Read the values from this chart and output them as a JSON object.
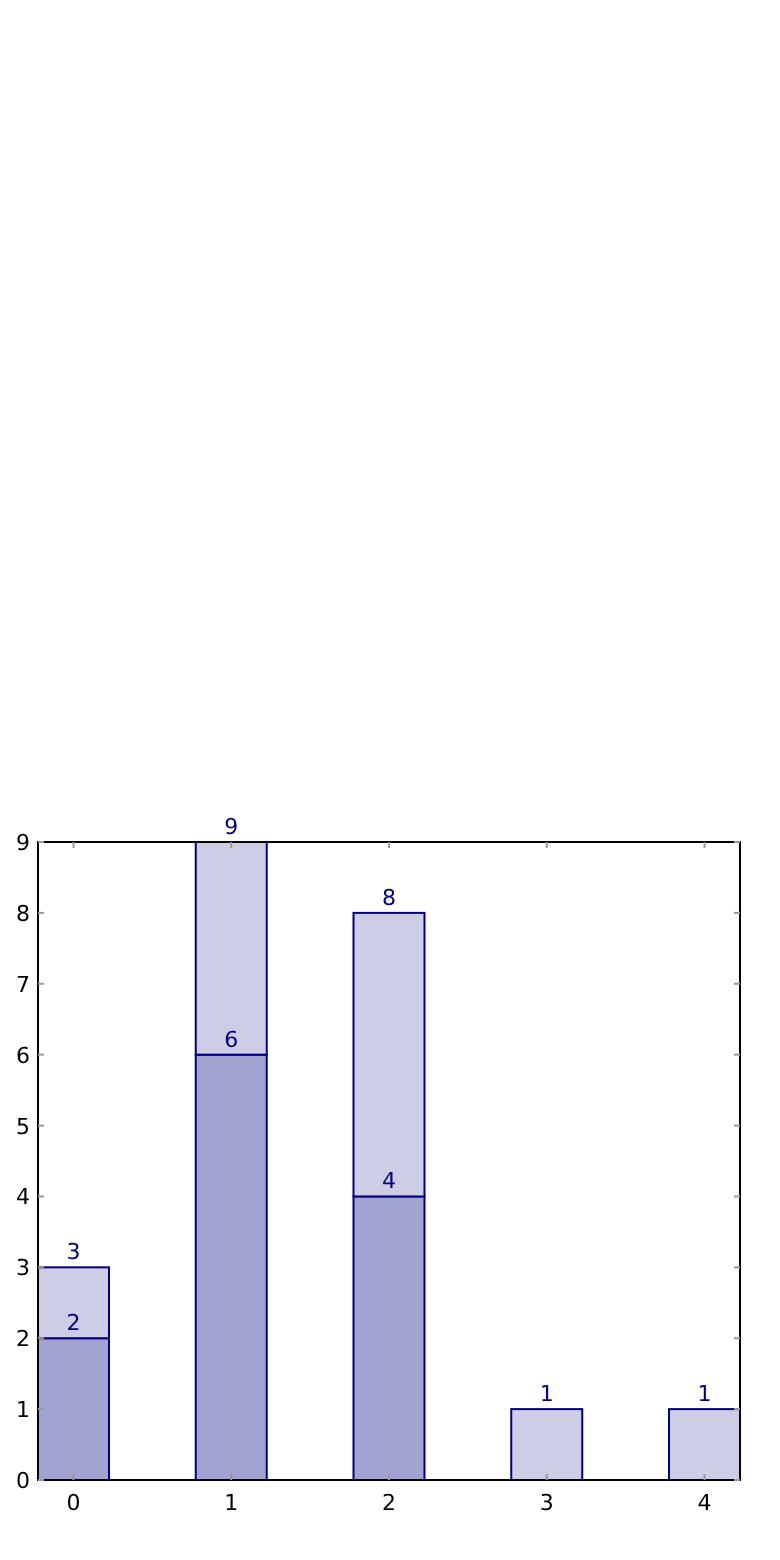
{
  "chart_data": {
    "type": "bar",
    "stacked": true,
    "x": [
      0,
      1,
      2,
      3,
      4
    ],
    "xlim": [
      -0.225,
      4.225
    ],
    "xticks": [
      0,
      1,
      2,
      3,
      4
    ],
    "ylim": [
      0,
      9
    ],
    "yticks": [
      0,
      1,
      2,
      3,
      4,
      5,
      6,
      7,
      8,
      9
    ],
    "grid": false,
    "totals": [
      "3",
      "9",
      "8",
      "1",
      "1"
    ],
    "series": [
      {
        "color": "#a3a3d1",
        "values": [
          2,
          6,
          4,
          null,
          null
        ],
        "value_labels": [
          "2",
          "6",
          "4",
          null,
          null
        ]
      },
      {
        "color": "#cdcde5",
        "values": [
          1,
          3,
          4,
          1,
          1
        ]
      }
    ]
  }
}
